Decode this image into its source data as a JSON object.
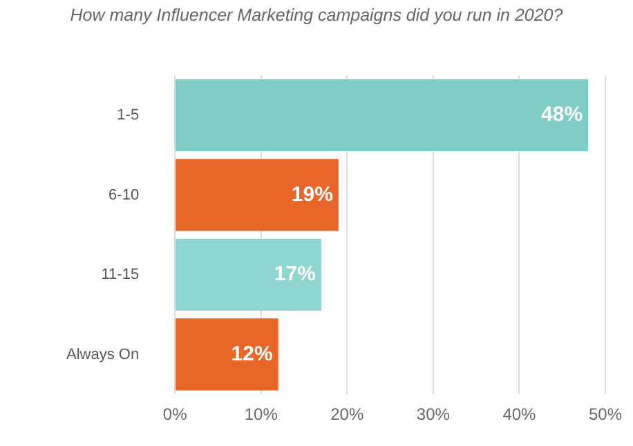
{
  "chart_data": {
    "type": "bar",
    "orientation": "horizontal",
    "title": "How many Influencer Marketing campaigns did you run in 2020?",
    "categories": [
      "1-5",
      "6-10",
      "11-15",
      "Always On"
    ],
    "values": [
      48,
      19,
      17,
      12
    ],
    "colors": [
      "#7fcdc6",
      "#e86628",
      "#8fd6d0",
      "#e86628"
    ],
    "value_labels": [
      "48%",
      "19%",
      "17%",
      "12%"
    ],
    "xlim": [
      0,
      50
    ],
    "xticks": [
      {
        "value": 0,
        "label": "0%"
      },
      {
        "value": 10,
        "label": "10%"
      },
      {
        "value": 20,
        "label": "20%"
      },
      {
        "value": 30,
        "label": "30%"
      },
      {
        "value": 40,
        "label": "40%"
      },
      {
        "value": 50,
        "label": "50%"
      }
    ],
    "grid": "x",
    "legend": false
  }
}
